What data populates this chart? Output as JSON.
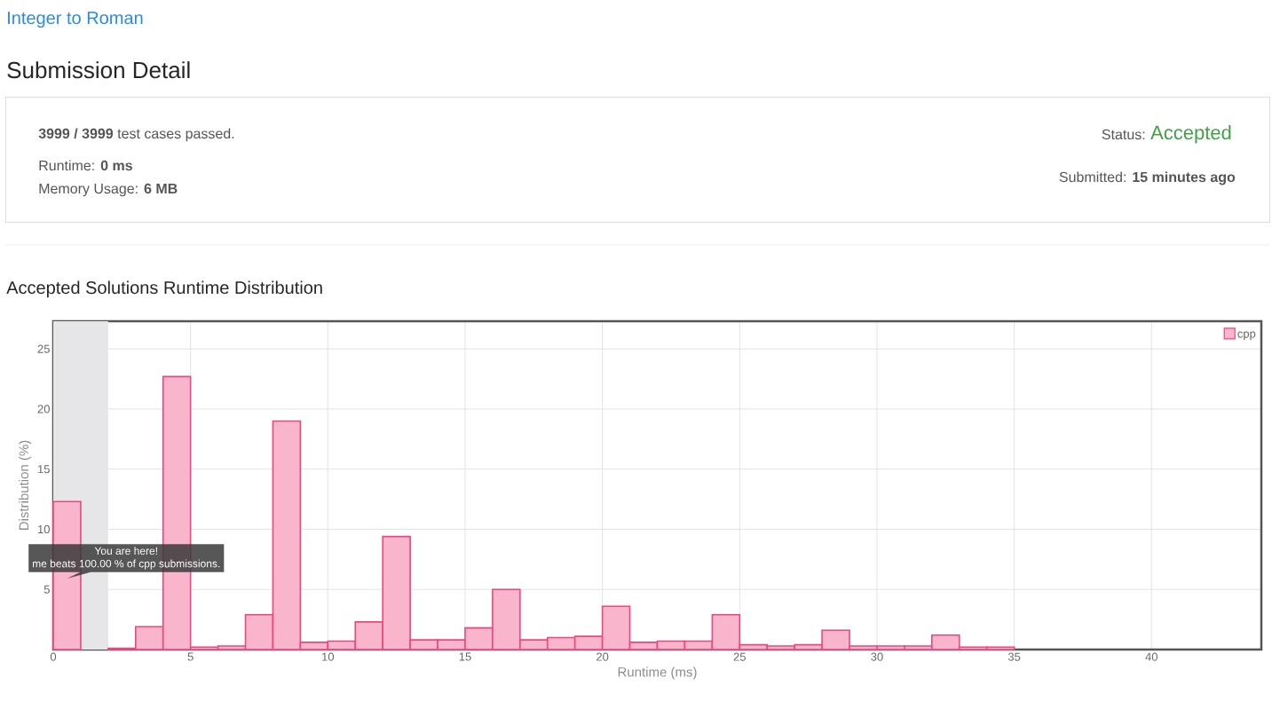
{
  "chart_data": [
    {
      "type": "other",
      "title": "Integer to Roman",
      "subtitle": "Submission Detail",
      "annotations": [
        "**3999 / 3999** test cases passed.",
        "Runtime: **0 ms**",
        "Memory Usage: **6 MB**",
        "Status:",
        "Accepted",
        "Submitted: **15 minutes ago**"
      ]
    },
    {
      "type": "histogram",
      "title": "Accepted Solutions Runtime Distribution",
      "xlabel": "Runtime (ms)",
      "ylabel": "Distribution (%)",
      "bins": [
        0,
        1,
        2,
        3,
        4,
        5,
        6,
        7,
        8,
        9,
        10,
        11,
        12,
        13,
        14,
        15,
        16,
        17,
        18,
        19,
        20,
        21,
        22,
        23,
        24,
        25,
        26,
        27,
        28,
        29,
        30,
        31,
        32,
        33,
        34,
        35
      ],
      "series": [
        {
          "name": "cpp",
          "color": "#f9b5cb",
          "values": [
            12.3,
            null,
            0.1,
            1.9,
            22.7,
            0.2,
            0.3,
            2.9,
            19.0,
            0.6,
            0.7,
            2.3,
            9.4,
            0.8,
            0.8,
            1.8,
            5.0,
            0.8,
            1.0,
            1.1,
            3.6,
            0.6,
            0.7,
            0.7,
            2.9,
            0.4,
            0.3,
            0.4,
            1.6,
            0.3,
            0.3,
            0.3,
            1.2,
            0.2,
            0.2
          ]
        }
      ],
      "xlim": [
        0,
        44
      ],
      "ylim": [
        0,
        27.3
      ],
      "xticks": [
        0,
        5,
        10,
        15,
        20,
        25,
        30,
        35,
        40
      ],
      "yticks": [
        5,
        10,
        15,
        20,
        25
      ],
      "grid": true,
      "legend": "top right",
      "bands": [
        {
          "axis": "x",
          "from": 0,
          "to": 2,
          "color": "#e6e6e8"
        }
      ],
      "annotations": [
        "You are here!",
        "me beats 100.00 % of cpp submissions."
      ]
    }
  ]
}
